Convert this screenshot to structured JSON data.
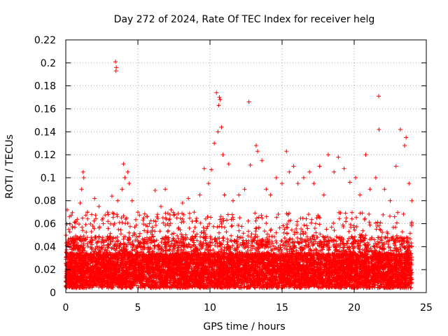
{
  "chart_data": {
    "type": "scatter",
    "title": "Day 272 of 2024, Rate Of TEC Index for receiver helg",
    "xlabel": "GPS time / hours",
    "ylabel": "ROTI / TECUs",
    "xlim": [
      0,
      25
    ],
    "ylim": [
      0,
      0.22
    ],
    "xticks": [
      0,
      5,
      10,
      15,
      20,
      25
    ],
    "xtick_labels": [
      "0",
      "5",
      "10",
      "15",
      "20",
      "25"
    ],
    "yticks": [
      0,
      0.02,
      0.04,
      0.06,
      0.08,
      0.1,
      0.12,
      0.14,
      0.16,
      0.18,
      0.2,
      0.22
    ],
    "ytick_labels": [
      "0",
      "0.02",
      "0.04",
      "0.06",
      "0.08",
      "0.1",
      "0.12",
      "0.14",
      "0.16",
      "0.18",
      "0.2",
      "0.22"
    ],
    "grid": true,
    "marker": "+",
    "color": "#ff0000",
    "series": [
      {
        "name": "ROTI",
        "points": [
          [
            0.1,
            0.072
          ],
          [
            0.2,
            0.055
          ],
          [
            0.3,
            0.04
          ],
          [
            0.5,
            0.03
          ],
          [
            0.7,
            0.062
          ],
          [
            1.0,
            0.078
          ],
          [
            1.2,
            0.105
          ],
          [
            1.25,
            0.1
          ],
          [
            1.1,
            0.09
          ],
          [
            1.5,
            0.07
          ],
          [
            1.8,
            0.068
          ],
          [
            2.0,
            0.082
          ],
          [
            2.3,
            0.075
          ],
          [
            2.6,
            0.06
          ],
          [
            2.9,
            0.07
          ],
          [
            3.2,
            0.084
          ],
          [
            3.45,
            0.201
          ],
          [
            3.5,
            0.196
          ],
          [
            3.48,
            0.193
          ],
          [
            3.6,
            0.08
          ],
          [
            3.9,
            0.09
          ],
          [
            4.0,
            0.112
          ],
          [
            4.1,
            0.1
          ],
          [
            4.3,
            0.105
          ],
          [
            4.4,
            0.095
          ],
          [
            4.6,
            0.08
          ],
          [
            5.0,
            0.07
          ],
          [
            5.4,
            0.065
          ],
          [
            5.8,
            0.06
          ],
          [
            6.2,
            0.089
          ],
          [
            6.6,
            0.075
          ],
          [
            6.9,
            0.09
          ],
          [
            7.3,
            0.072
          ],
          [
            7.7,
            0.065
          ],
          [
            8.1,
            0.078
          ],
          [
            8.5,
            0.082
          ],
          [
            8.9,
            0.07
          ],
          [
            9.3,
            0.085
          ],
          [
            9.6,
            0.108
          ],
          [
            9.9,
            0.095
          ],
          [
            10.1,
            0.107
          ],
          [
            10.3,
            0.13
          ],
          [
            10.45,
            0.174
          ],
          [
            10.55,
            0.14
          ],
          [
            10.6,
            0.163
          ],
          [
            10.7,
            0.168
          ],
          [
            10.65,
            0.17
          ],
          [
            10.8,
            0.144
          ],
          [
            10.9,
            0.12
          ],
          [
            11.0,
            0.085
          ],
          [
            11.3,
            0.112
          ],
          [
            11.6,
            0.08
          ],
          [
            12.0,
            0.085
          ],
          [
            12.4,
            0.09
          ],
          [
            12.7,
            0.166
          ],
          [
            12.8,
            0.111
          ],
          [
            13.2,
            0.128
          ],
          [
            13.3,
            0.123
          ],
          [
            13.6,
            0.115
          ],
          [
            13.9,
            0.09
          ],
          [
            14.2,
            0.085
          ],
          [
            14.6,
            0.1
          ],
          [
            15.0,
            0.095
          ],
          [
            15.3,
            0.123
          ],
          [
            15.5,
            0.105
          ],
          [
            15.8,
            0.11
          ],
          [
            16.1,
            0.095
          ],
          [
            16.5,
            0.1
          ],
          [
            16.9,
            0.105
          ],
          [
            17.2,
            0.095
          ],
          [
            17.6,
            0.11
          ],
          [
            17.9,
            0.085
          ],
          [
            18.2,
            0.12
          ],
          [
            18.6,
            0.105
          ],
          [
            18.9,
            0.118
          ],
          [
            19.3,
            0.108
          ],
          [
            19.7,
            0.096
          ],
          [
            20.1,
            0.1
          ],
          [
            20.4,
            0.085
          ],
          [
            20.8,
            0.12
          ],
          [
            21.1,
            0.09
          ],
          [
            21.5,
            0.1
          ],
          [
            21.7,
            0.171
          ],
          [
            21.72,
            0.142
          ],
          [
            22.1,
            0.09
          ],
          [
            22.5,
            0.08
          ],
          [
            22.9,
            0.11
          ],
          [
            23.2,
            0.142
          ],
          [
            23.5,
            0.128
          ],
          [
            23.6,
            0.135
          ],
          [
            23.8,
            0.095
          ],
          [
            24.0,
            0.08
          ]
        ]
      }
    ]
  }
}
